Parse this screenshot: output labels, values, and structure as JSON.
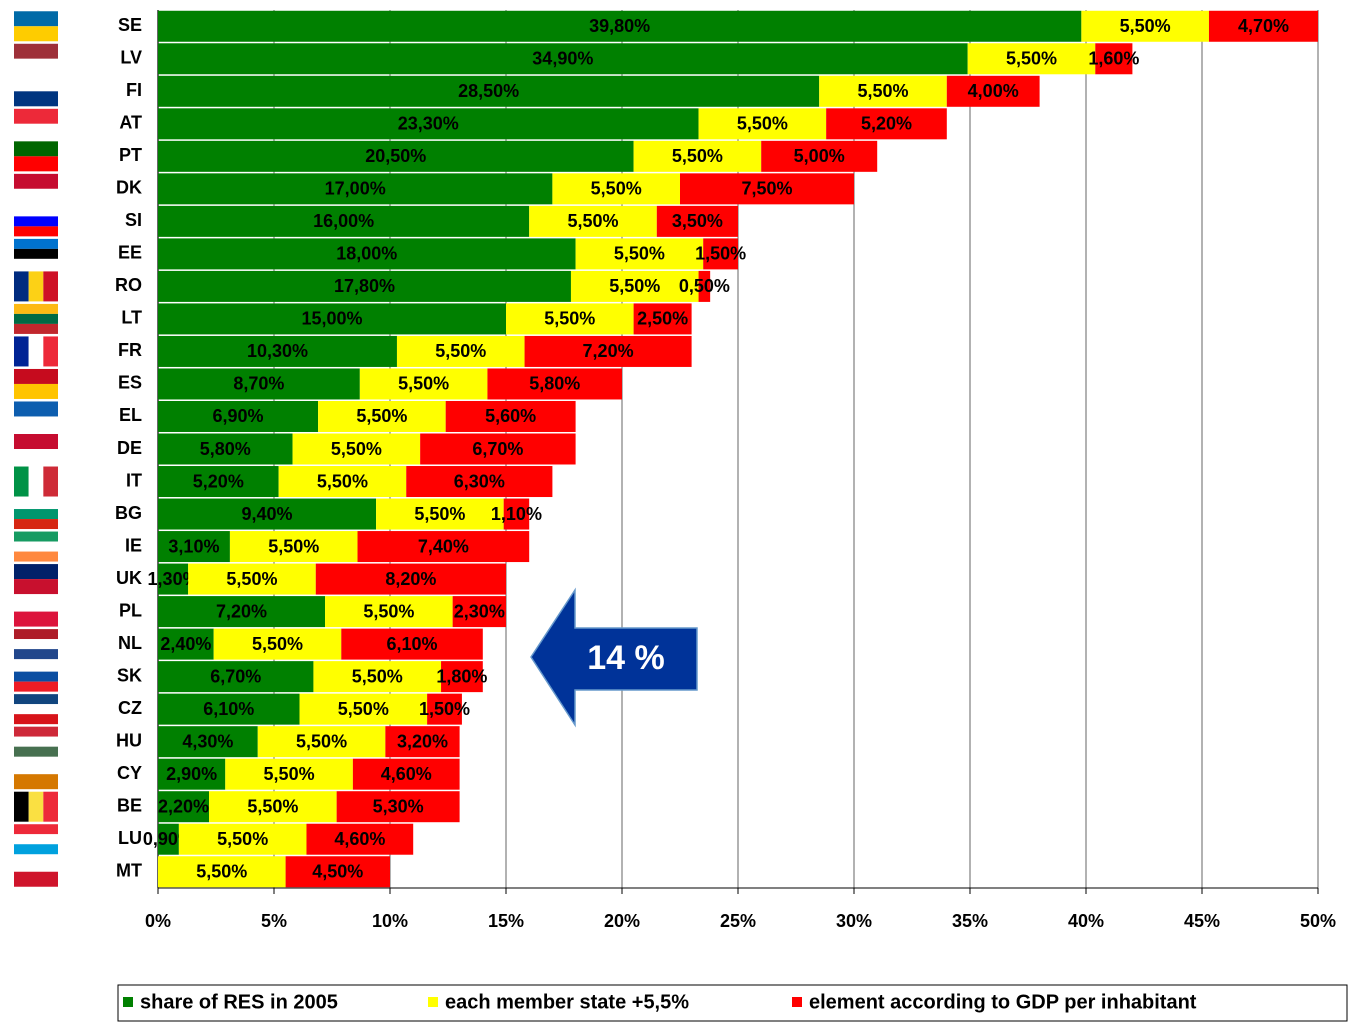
{
  "chart_data": {
    "type": "stacked-barh",
    "categories": [
      "SE",
      "LV",
      "FI",
      "AT",
      "PT",
      "DK",
      "SI",
      "EE",
      "RO",
      "LT",
      "FR",
      "ES",
      "EL",
      "DE",
      "IT",
      "BG",
      "IE",
      "UK",
      "PL",
      "NL",
      "SK",
      "CZ",
      "HU",
      "CY",
      "BE",
      "LU",
      "MT"
    ],
    "series": [
      {
        "name": "share of RES in 2005",
        "color": "#008000",
        "values": [
          39.8,
          34.9,
          28.5,
          23.3,
          20.5,
          17.0,
          16.0,
          18.0,
          17.8,
          15.0,
          10.3,
          8.7,
          6.9,
          5.8,
          5.2,
          9.4,
          3.1,
          1.3,
          7.2,
          2.4,
          6.7,
          6.1,
          4.3,
          2.9,
          2.2,
          0.9,
          0
        ],
        "value_labels": [
          "39,80%",
          "34,90%",
          "28,50%",
          "23,30%",
          "20,50%",
          "17,00%",
          "16,00%",
          "18,00%",
          "17,80%",
          "15,00%",
          "10,30%",
          "8,70%",
          "6,90%",
          "5,80%",
          "5,20%",
          "9,40%",
          "3,10%",
          "1,30%",
          "7,20%",
          "2,40%",
          "6,70%",
          "6,10%",
          "4,30%",
          "2,90%",
          "2,20%",
          "0,90%",
          null
        ]
      },
      {
        "name": "each member state +5,5%",
        "color": "#ffff00",
        "values": [
          5.5,
          5.5,
          5.5,
          5.5,
          5.5,
          5.5,
          5.5,
          5.5,
          5.5,
          5.5,
          5.5,
          5.5,
          5.5,
          5.5,
          5.5,
          5.5,
          5.5,
          5.5,
          5.5,
          5.5,
          5.5,
          5.5,
          5.5,
          5.5,
          5.5,
          5.5,
          5.5
        ],
        "value_labels": [
          "5,50%",
          "5,50%",
          "5,50%",
          "5,50%",
          "5,50%",
          "5,50%",
          "5,50%",
          "5,50%",
          "5,50%",
          "5,50%",
          "5,50%",
          "5,50%",
          "5,50%",
          "5,50%",
          "5,50%",
          "5,50%",
          "5,50%",
          "5,50%",
          "5,50%",
          "5,50%",
          "5,50%",
          "5,50%",
          "5,50%",
          "5,50%",
          "5,50%",
          "5,50%",
          "5,50%"
        ]
      },
      {
        "name": "element according to GDP per inhabitant",
        "color": "#ff0000",
        "values": [
          4.7,
          1.6,
          4.0,
          5.2,
          5.0,
          7.5,
          3.5,
          1.5,
          0.5,
          2.5,
          7.2,
          5.8,
          5.6,
          6.7,
          6.3,
          1.1,
          7.4,
          8.2,
          2.3,
          6.1,
          1.8,
          1.5,
          3.2,
          4.6,
          5.3,
          4.6,
          4.5
        ],
        "value_labels": [
          "4,70%",
          "1,60%",
          "4,00%",
          "5,20%",
          "5,00%",
          "7,50%",
          "3,50%",
          "1,50%",
          "0,50%",
          "2,50%",
          "7,20%",
          "5,80%",
          "5,60%",
          "6,70%",
          "6,30%",
          "1,10%",
          "7,40%",
          "8,20%",
          "2,30%",
          "6,10%",
          "1,80%",
          "1,50%",
          "3,20%",
          "4,60%",
          "5,30%",
          "4,60%",
          "4,50%"
        ]
      }
    ],
    "xlim": [
      0,
      50
    ],
    "xticks": [
      {
        "value": 0,
        "label": "0%"
      },
      {
        "value": 5,
        "label": "5%"
      },
      {
        "value": 10,
        "label": "10%"
      },
      {
        "value": 15,
        "label": "15%"
      },
      {
        "value": 20,
        "label": "20%"
      },
      {
        "value": 25,
        "label": "25%"
      },
      {
        "value": 30,
        "label": "30%"
      },
      {
        "value": 35,
        "label": "35%"
      },
      {
        "value": 40,
        "label": "40%"
      },
      {
        "value": 45,
        "label": "45%"
      },
      {
        "value": 50,
        "label": "50%"
      }
    ],
    "grid": true,
    "legend": "bottom",
    "annotation": "14 %"
  }
}
